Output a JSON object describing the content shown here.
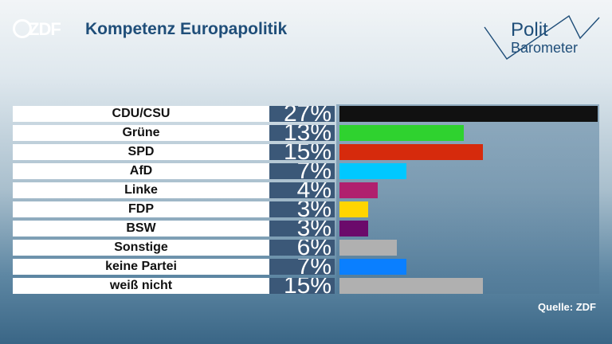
{
  "header": {
    "logo": "ZDF",
    "title": "Kompetenz Europapolitik"
  },
  "brand": {
    "word1": "Polit",
    "word2": "Barometer"
  },
  "source": "Quelle: ZDF",
  "chart_data": {
    "type": "bar",
    "orientation": "horizontal",
    "categories": [
      "CDU/CSU",
      "Grüne",
      "SPD",
      "AfD",
      "Linke",
      "FDP",
      "BSW",
      "Sonstige",
      "keine Partei",
      "weiß nicht"
    ],
    "values": [
      27,
      13,
      15,
      7,
      4,
      3,
      3,
      6,
      7,
      15
    ],
    "value_labels": [
      "27%",
      "13%",
      "15%",
      "7%",
      "4%",
      "3%",
      "3%",
      "6%",
      "7%",
      "15%"
    ],
    "colors": [
      "#111111",
      "#2fd22f",
      "#d62a0c",
      "#00c8ff",
      "#b0206e",
      "#ffd500",
      "#6b0a6b",
      "#b0b0b0",
      "#0a7fff",
      "#b0b0b0"
    ],
    "xlim": [
      0,
      27
    ],
    "title": "Kompetenz Europapolitik"
  }
}
